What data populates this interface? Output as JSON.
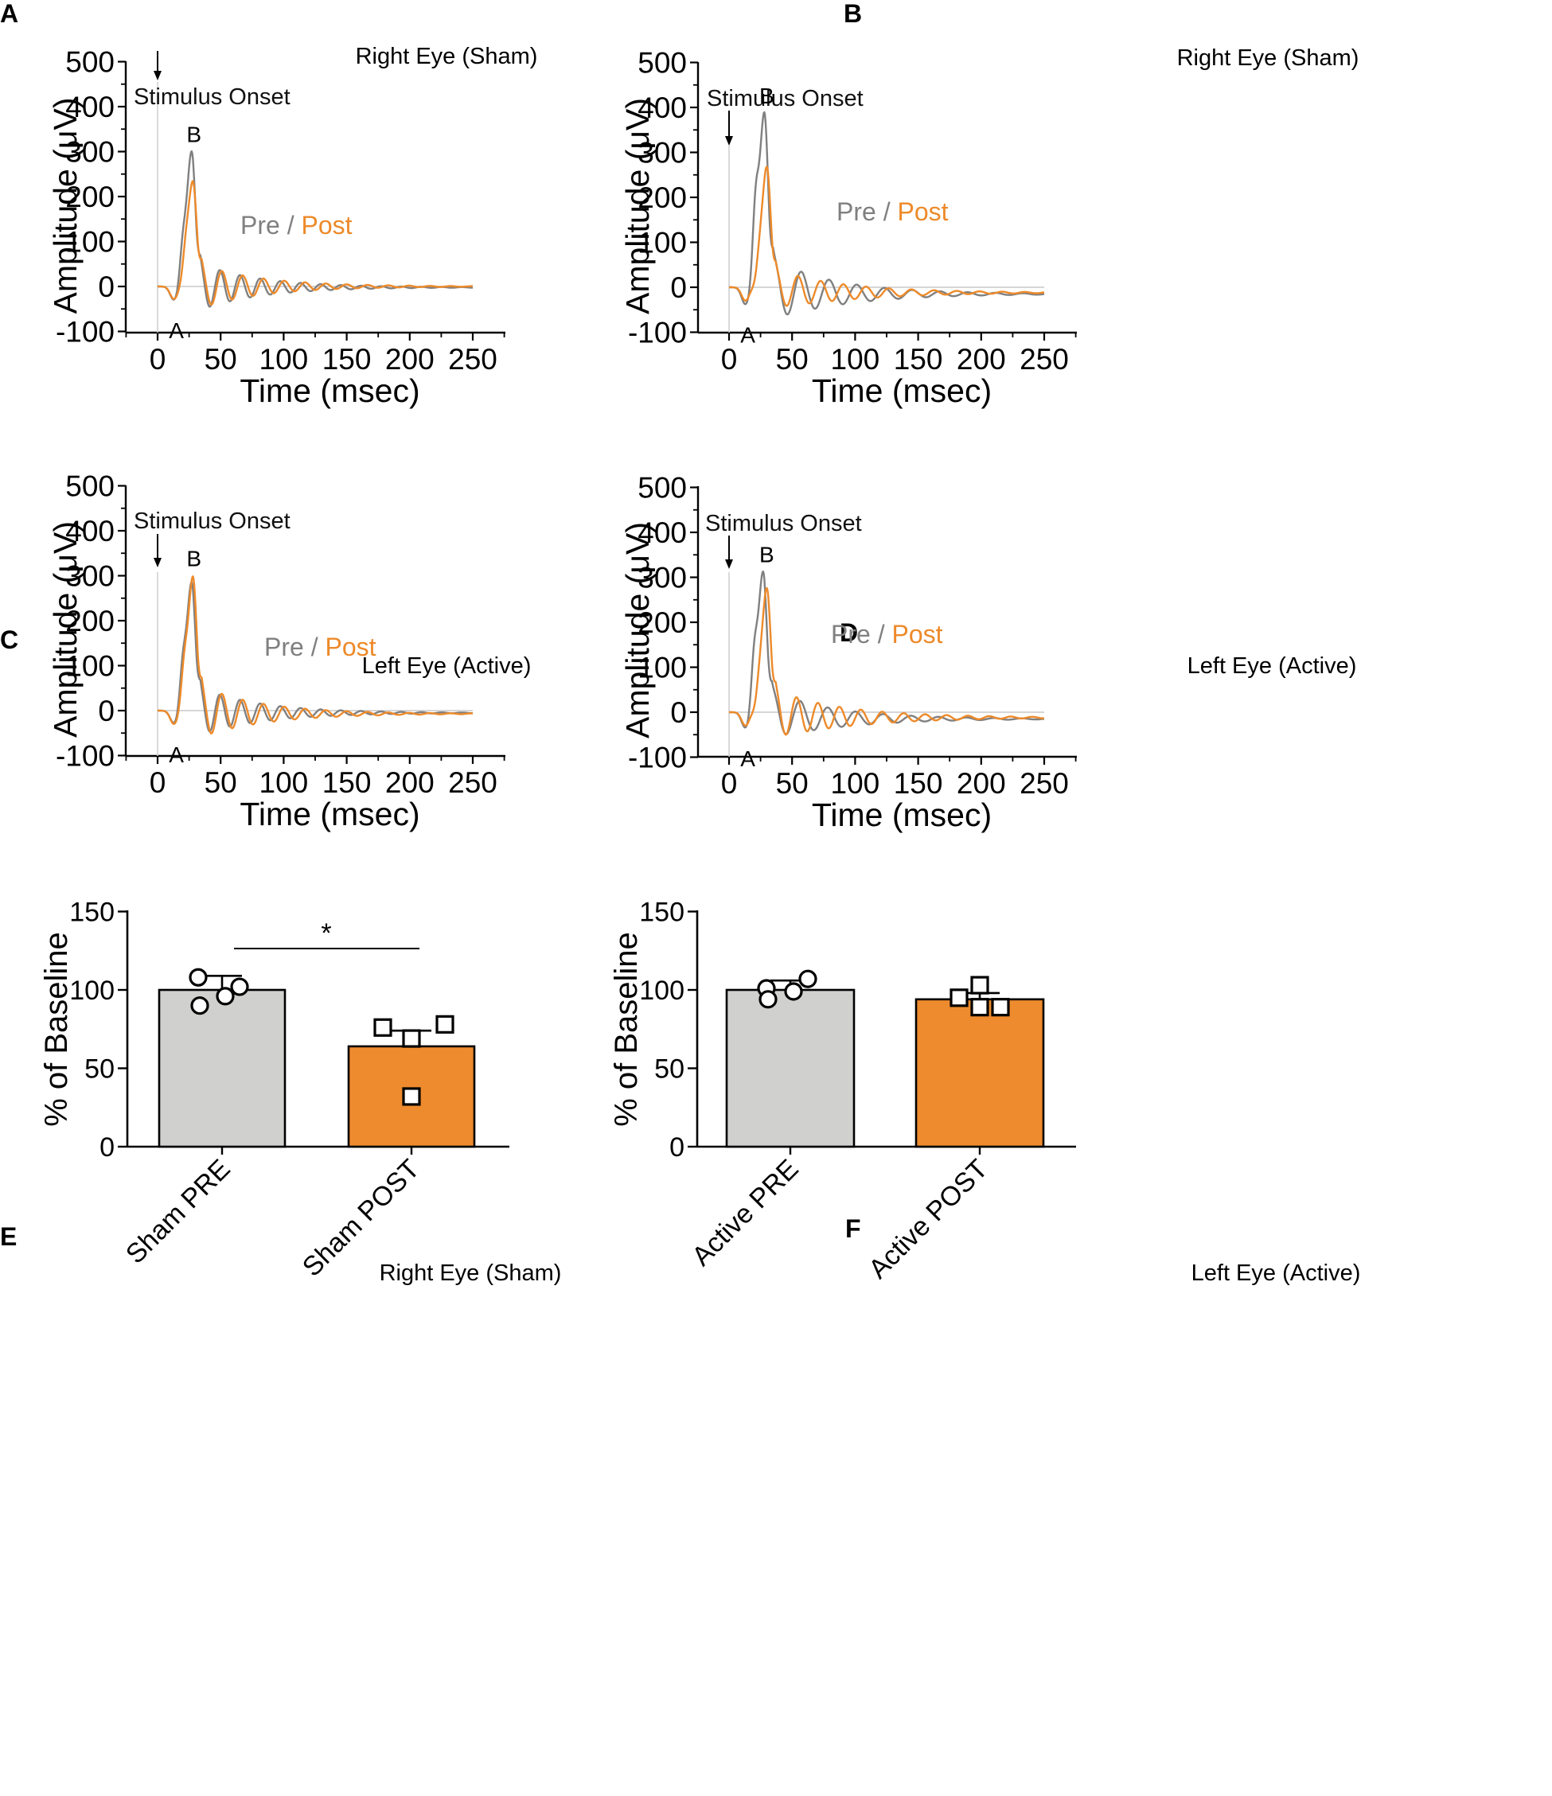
{
  "figure": {
    "panels": [
      "A",
      "B",
      "C",
      "D",
      "E",
      "F"
    ]
  },
  "chart_data": [
    {
      "panel": "A",
      "type": "line",
      "title": "Right Eye (Sham)",
      "xlabel": "Time (msec)",
      "ylabel": "Amplitude (μV)",
      "xlim": [
        -25,
        275
      ],
      "ylim": [
        -100,
        500
      ],
      "xticks": [
        0,
        50,
        100,
        150,
        200,
        250
      ],
      "yticks": [
        -100,
        0,
        100,
        200,
        300,
        400,
        500
      ],
      "annotation": "Stimulus Onset",
      "peak_labels": {
        "A": {
          "x": 13,
          "y": -30
        },
        "B": {
          "x": 27,
          "y": 300
        }
      },
      "legend": {
        "pre": "Pre",
        "sep": " / ",
        "post": "Post"
      },
      "colors": {
        "pre": "#808080",
        "post": "#ED8A2A"
      },
      "pre": {
        "tA": 13,
        "vA": -30,
        "tB": 27,
        "vB": 300,
        "pre_amp": 75,
        "pre_mu": 20,
        "tail_amp": 55,
        "tail_decay": 48,
        "period": 16,
        "drift": -2
      },
      "post": {
        "tA": 13,
        "vA": -28,
        "tB": 28,
        "vB": 233,
        "pre_amp": 50,
        "pre_mu": 22,
        "tail_amp": 50,
        "tail_decay": 50,
        "period": 16.5,
        "drift": 0
      }
    },
    {
      "panel": "B",
      "type": "line",
      "title": "Right Eye (Sham)",
      "xlabel": "Time (msec)",
      "ylabel": "Amplitude (μV)",
      "xlim": [
        -25,
        275
      ],
      "ylim": [
        -100,
        500
      ],
      "xticks": [
        0,
        50,
        100,
        150,
        200,
        250
      ],
      "yticks": [
        -100,
        0,
        100,
        200,
        300,
        400,
        500
      ],
      "annotation": "Stimulus Onset",
      "peak_labels": {
        "A": {
          "x": 13,
          "y": -38
        },
        "B": {
          "x": 28,
          "y": 388
        }
      },
      "legend": {
        "pre": "Pre",
        "sep": " / ",
        "post": "Post"
      },
      "colors": {
        "pre": "#808080",
        "post": "#ED8A2A"
      },
      "pre": {
        "tA": 13,
        "vA": -38,
        "tB": 28,
        "vB": 388,
        "pre_amp": 160,
        "pre_mu": 21,
        "tail_amp": 70,
        "tail_decay": 55,
        "period": 22,
        "drift": -15
      },
      "post": {
        "tA": 13,
        "vA": -30,
        "tB": 30,
        "vB": 267,
        "pre_amp": 40,
        "pre_mu": 24,
        "tail_amp": 45,
        "tail_decay": 60,
        "period": 18,
        "drift": -12
      }
    },
    {
      "panel": "C",
      "type": "line",
      "title": "Left Eye (Active)",
      "xlabel": "Time (msec)",
      "ylabel": "Amplitude (μV)",
      "xlim": [
        -25,
        275
      ],
      "ylim": [
        -100,
        500
      ],
      "xticks": [
        0,
        50,
        100,
        150,
        200,
        250
      ],
      "yticks": [
        -100,
        0,
        100,
        200,
        300,
        400,
        500
      ],
      "annotation": "Stimulus Onset",
      "peak_labels": {
        "A": {
          "x": 13,
          "y": -30
        },
        "B": {
          "x": 27,
          "y": 300
        }
      },
      "legend": {
        "pre": "Pre",
        "sep": " / ",
        "post": "Post"
      },
      "colors": {
        "pre": "#808080",
        "post": "#ED8A2A"
      },
      "pre": {
        "tA": 13,
        "vA": -28,
        "tB": 27,
        "vB": 285,
        "pre_amp": 85,
        "pre_mu": 20,
        "tail_amp": 55,
        "tail_decay": 50,
        "period": 16,
        "drift": -5
      },
      "post": {
        "tA": 13,
        "vA": -30,
        "tB": 28,
        "vB": 298,
        "pre_amp": 80,
        "pre_mu": 21,
        "tail_amp": 60,
        "tail_decay": 50,
        "period": 16.5,
        "drift": -7
      }
    },
    {
      "panel": "D",
      "type": "line",
      "title": "Left Eye (Active)",
      "xlabel": "Time (msec)",
      "ylabel": "Amplitude (μV)",
      "xlim": [
        -25,
        275
      ],
      "ylim": [
        -100,
        500
      ],
      "xticks": [
        0,
        50,
        100,
        150,
        200,
        250
      ],
      "yticks": [
        -100,
        0,
        100,
        200,
        300,
        400,
        500
      ],
      "annotation": "Stimulus Onset",
      "peak_labels": {
        "A": {
          "x": 13,
          "y": -35
        },
        "B": {
          "x": 28,
          "y": 312
        }
      },
      "legend": {
        "pre": "Pre",
        "sep": " / ",
        "post": "Post"
      },
      "colors": {
        "pre": "#808080",
        "post": "#ED8A2A"
      },
      "pre": {
        "tA": 13,
        "vA": -35,
        "tB": 27,
        "vB": 312,
        "pre_amp": 110,
        "pre_mu": 20,
        "tail_amp": 55,
        "tail_decay": 55,
        "period": 22,
        "drift": -15
      },
      "post": {
        "tA": 13,
        "vA": -30,
        "tB": 30,
        "vB": 275,
        "pre_amp": 40,
        "pre_mu": 24,
        "tail_amp": 55,
        "tail_decay": 60,
        "period": 17,
        "drift": -12
      }
    },
    {
      "panel": "E",
      "type": "bar",
      "title": "Right Eye (Sham)",
      "ylabel": "% of Baseline",
      "ylim": [
        0,
        150
      ],
      "yticks": [
        0,
        50,
        100,
        150
      ],
      "categories": [
        "Sham PRE",
        "Sham POST"
      ],
      "values": [
        100,
        64
      ],
      "sem": [
        9,
        10
      ],
      "bar_colors": [
        "#D0D0CE",
        "#EE8B2E"
      ],
      "points": [
        [
          108,
          102,
          90,
          96
        ],
        [
          76,
          78,
          69,
          32
        ]
      ],
      "markers": [
        "circle",
        "square"
      ],
      "significance": "*"
    },
    {
      "panel": "F",
      "type": "bar",
      "title": "Left Eye (Active)",
      "ylabel": "% of Baseline",
      "ylim": [
        0,
        150
      ],
      "yticks": [
        0,
        50,
        100,
        150
      ],
      "categories": [
        "Active PRE",
        "Active POST"
      ],
      "values": [
        100,
        94
      ],
      "sem": [
        6,
        4
      ],
      "bar_colors": [
        "#D0D0CE",
        "#EE8B2E"
      ],
      "points": [
        [
          101,
          107,
          94,
          99
        ],
        [
          103,
          95,
          89,
          89
        ]
      ],
      "markers": [
        "circle",
        "square"
      ],
      "significance": ""
    }
  ]
}
